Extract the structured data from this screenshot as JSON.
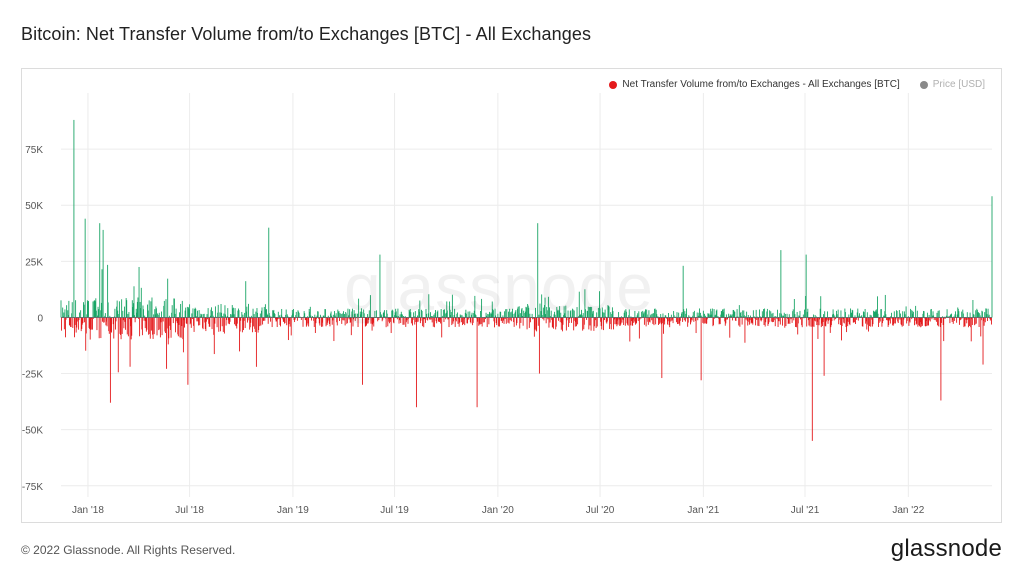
{
  "title": "Bitcoin: Net Transfer Volume from/to Exchanges [BTC] - All Exchanges",
  "legend": [
    {
      "label": "Net Transfer Volume from/to Exchanges - All Exchanges [BTC]",
      "color": "#e41a1c",
      "active": true
    },
    {
      "label": "Price [USD]",
      "color": "#8a8a8a",
      "active": false
    }
  ],
  "watermark": "glassnode",
  "footer": {
    "copyright": "© 2022 Glassnode. All Rights Reserved.",
    "logo": "glassnode"
  },
  "colors": {
    "positive": "#1aa566",
    "negative": "#e41a1c",
    "grid": "#ececec",
    "zero_line": "#6c6c6c"
  },
  "chart_data": {
    "type": "bar",
    "x_range": [
      "2017-11-14",
      "2022-05-30"
    ],
    "ylim": [
      -80000,
      100000
    ],
    "y_ticks": [
      75000,
      50000,
      25000,
      0,
      -25000,
      -50000,
      -75000
    ],
    "y_tick_labels": [
      "75K",
      "50K",
      "25K",
      "0",
      "-25K",
      "-50K",
      "-75K"
    ],
    "x_ticks": [
      "2018-01-01",
      "2018-07-01",
      "2019-01-01",
      "2019-07-01",
      "2020-01-01",
      "2020-07-01",
      "2021-01-01",
      "2021-07-01",
      "2022-01-01"
    ],
    "x_tick_labels": [
      "Jan '18",
      "Jul '18",
      "Jan '19",
      "Jul '19",
      "Jan '20",
      "Jul '20",
      "Jan '21",
      "Jul '21",
      "Jan '22"
    ],
    "grid": true,
    "series_name": "Net Transfer Volume from/to Exchanges - All Exchanges [BTC]",
    "notable_points": [
      {
        "date": "2017-12-07",
        "value": 88000
      },
      {
        "date": "2017-12-27",
        "value": 44000
      },
      {
        "date": "2018-01-22",
        "value": 42000
      },
      {
        "date": "2018-01-28",
        "value": 39000
      },
      {
        "date": "2018-02-10",
        "value": -38000
      },
      {
        "date": "2018-06-28",
        "value": -30000
      },
      {
        "date": "2018-10-28",
        "value": -22000
      },
      {
        "date": "2018-11-19",
        "value": 40000
      },
      {
        "date": "2019-05-05",
        "value": -30000
      },
      {
        "date": "2019-06-05",
        "value": 28000
      },
      {
        "date": "2019-08-09",
        "value": -40000
      },
      {
        "date": "2019-11-25",
        "value": -40000
      },
      {
        "date": "2020-03-12",
        "value": 42000
      },
      {
        "date": "2020-03-15",
        "value": -25000
      },
      {
        "date": "2020-10-19",
        "value": -27000
      },
      {
        "date": "2020-11-26",
        "value": 23000
      },
      {
        "date": "2020-12-28",
        "value": -28000
      },
      {
        "date": "2021-05-19",
        "value": 30000
      },
      {
        "date": "2021-07-03",
        "value": 28000
      },
      {
        "date": "2021-07-14",
        "value": -55000
      },
      {
        "date": "2021-08-04",
        "value": -26000
      },
      {
        "date": "2022-02-28",
        "value": -37000
      },
      {
        "date": "2022-05-14",
        "value": -21000
      },
      {
        "date": "2022-05-30",
        "value": 54000
      }
    ]
  }
}
